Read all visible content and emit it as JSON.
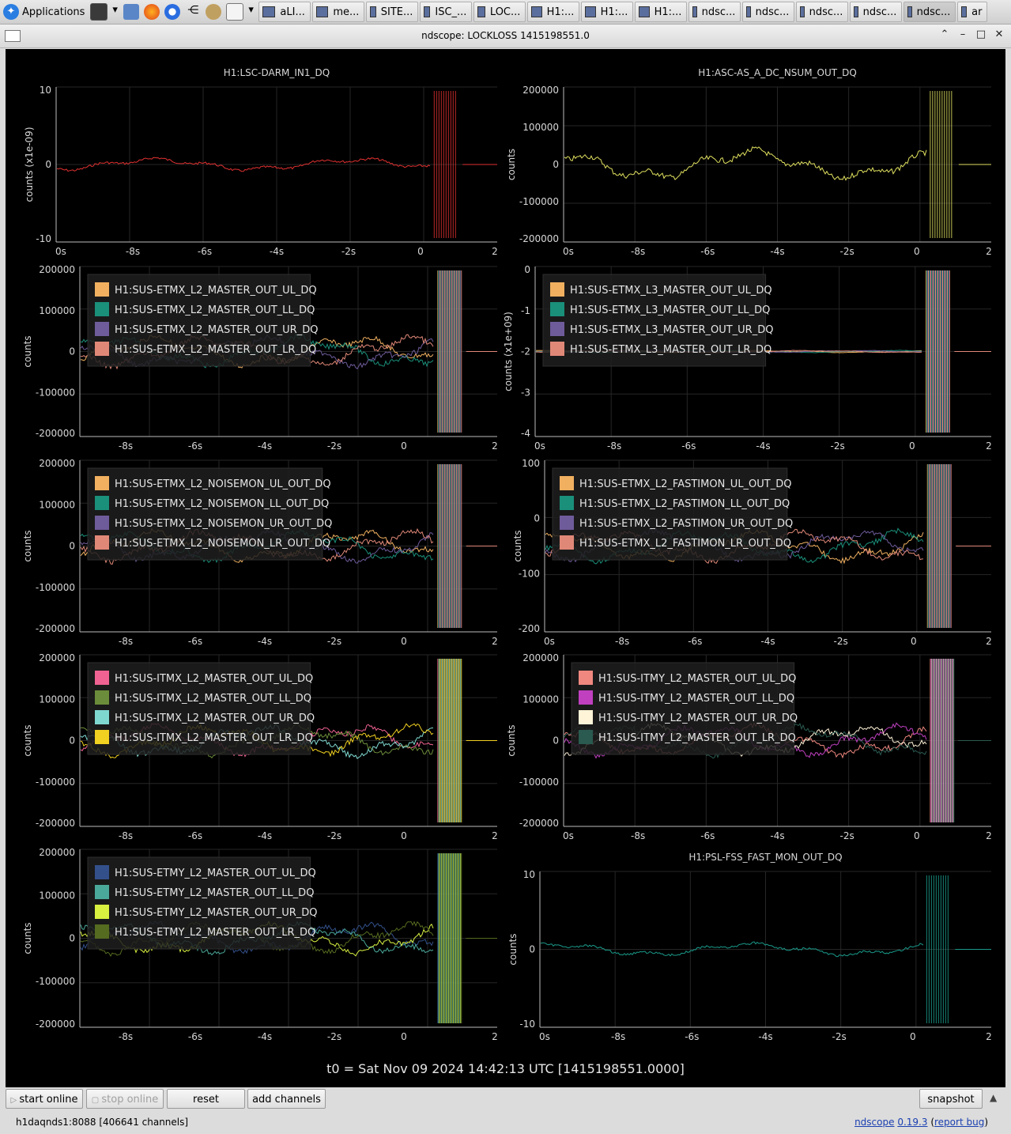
{
  "taskbar": {
    "apps_label": "Applications",
    "tasks": [
      {
        "label": "aLI...",
        "active": false
      },
      {
        "label": "me...",
        "active": false
      },
      {
        "label": "SITE...",
        "active": false
      },
      {
        "label": "ISC_...",
        "active": false
      },
      {
        "label": "LOC...",
        "active": false
      },
      {
        "label": "H1:...",
        "active": false
      },
      {
        "label": "H1:...",
        "active": false
      },
      {
        "label": "H1:...",
        "active": false
      },
      {
        "label": "ndsc...",
        "active": false
      },
      {
        "label": "ndsc...",
        "active": false
      },
      {
        "label": "ndsc...",
        "active": false
      },
      {
        "label": "ndsc...",
        "active": false
      },
      {
        "label": "ndsc...",
        "active": true
      },
      {
        "label": "ar",
        "active": false
      }
    ]
  },
  "window": {
    "title": "ndscope: LOCKLOSS 1415198551.0"
  },
  "colors": {
    "background": "#000000",
    "grid": "#262626",
    "axis": "#bdbdbd"
  },
  "plots": [
    {
      "title": "H1:LSC-DARM_IN1_DQ",
      "ylabel": "counts (x1e-09)",
      "yticks": [
        "10",
        "0",
        "-10"
      ],
      "xticks": [
        "0s",
        "-8s",
        "-6s",
        "-4s",
        "-2s",
        "0",
        "2"
      ],
      "legend": []
    },
    {
      "title": "H1:ASC-AS_A_DC_NSUM_OUT_DQ",
      "ylabel": "counts",
      "yticks": [
        "200000",
        "100000",
        "0",
        "-100000",
        "-200000"
      ],
      "xticks": [
        "0s",
        "-8s",
        "-6s",
        "-4s",
        "-2s",
        "0",
        "2"
      ],
      "legend": []
    },
    {
      "title": "",
      "ylabel": "counts",
      "yticks": [
        "200000",
        "100000",
        "0",
        "-100000",
        "-200000"
      ],
      "xticks": [
        "-8s",
        "-6s",
        "-4s",
        "-2s",
        "0",
        "2"
      ],
      "legend": [
        {
          "label": "H1:SUS-ETMX_L2_MASTER_OUT_UL_DQ",
          "color": "#f0b060"
        },
        {
          "label": "H1:SUS-ETMX_L2_MASTER_OUT_LL_DQ",
          "color": "#1a8f7a"
        },
        {
          "label": "H1:SUS-ETMX_L2_MASTER_OUT_UR_DQ",
          "color": "#6e5b9a"
        },
        {
          "label": "H1:SUS-ETMX_L2_MASTER_OUT_LR_DQ",
          "color": "#e08878"
        }
      ]
    },
    {
      "title": "",
      "ylabel": "counts (x1e+09)",
      "yticks": [
        "0",
        "-1",
        "-2",
        "-3",
        "-4"
      ],
      "xticks": [
        "0s",
        "-8s",
        "-6s",
        "-4s",
        "-2s",
        "0",
        "2"
      ],
      "legend": [
        {
          "label": "H1:SUS-ETMX_L3_MASTER_OUT_UL_DQ",
          "color": "#f0b060"
        },
        {
          "label": "H1:SUS-ETMX_L3_MASTER_OUT_LL_DQ",
          "color": "#1a8f7a"
        },
        {
          "label": "H1:SUS-ETMX_L3_MASTER_OUT_UR_DQ",
          "color": "#6e5b9a"
        },
        {
          "label": "H1:SUS-ETMX_L3_MASTER_OUT_LR_DQ",
          "color": "#e08878"
        }
      ]
    },
    {
      "title": "",
      "ylabel": "counts",
      "yticks": [
        "200000",
        "100000",
        "0",
        "-100000",
        "-200000"
      ],
      "xticks": [
        "-8s",
        "-6s",
        "-4s",
        "-2s",
        "0",
        "2"
      ],
      "legend": [
        {
          "label": "H1:SUS-ETMX_L2_NOISEMON_UL_OUT_DQ",
          "color": "#f0b060"
        },
        {
          "label": "H1:SUS-ETMX_L2_NOISEMON_LL_OUT_DQ",
          "color": "#1a8f7a"
        },
        {
          "label": "H1:SUS-ETMX_L2_NOISEMON_UR_OUT_DQ",
          "color": "#6e5b9a"
        },
        {
          "label": "H1:SUS-ETMX_L2_NOISEMON_LR_OUT_DQ",
          "color": "#e08878"
        }
      ]
    },
    {
      "title": "",
      "ylabel": "counts",
      "yticks": [
        "100",
        "0",
        "-100",
        "-200"
      ],
      "xticks": [
        "0s",
        "-8s",
        "-6s",
        "-4s",
        "-2s",
        "0",
        "2"
      ],
      "legend": [
        {
          "label": "H1:SUS-ETMX_L2_FASTIMON_UL_OUT_DQ",
          "color": "#f0b060"
        },
        {
          "label": "H1:SUS-ETMX_L2_FASTIMON_LL_OUT_DQ",
          "color": "#1a8f7a"
        },
        {
          "label": "H1:SUS-ETMX_L2_FASTIMON_UR_OUT_DQ",
          "color": "#6e5b9a"
        },
        {
          "label": "H1:SUS-ETMX_L2_FASTIMON_LR_OUT_DQ",
          "color": "#e08878"
        }
      ]
    },
    {
      "title": "",
      "ylabel": "counts",
      "yticks": [
        "200000",
        "100000",
        "0",
        "-100000",
        "-200000"
      ],
      "xticks": [
        "-8s",
        "-6s",
        "-4s",
        "-2s",
        "0",
        "2"
      ],
      "legend": [
        {
          "label": "H1:SUS-ITMX_L2_MASTER_OUT_UL_DQ",
          "color": "#f06292"
        },
        {
          "label": "H1:SUS-ITMX_L2_MASTER_OUT_LL_DQ",
          "color": "#6b8c3a"
        },
        {
          "label": "H1:SUS-ITMX_L2_MASTER_OUT_UR_DQ",
          "color": "#7fd8d0"
        },
        {
          "label": "H1:SUS-ITMX_L2_MASTER_OUT_LR_DQ",
          "color": "#f0d020"
        }
      ]
    },
    {
      "title": "",
      "ylabel": "counts",
      "yticks": [
        "200000",
        "100000",
        "0",
        "-100000",
        "-200000"
      ],
      "xticks": [
        "0s",
        "-8s",
        "-6s",
        "-4s",
        "-2s",
        "0",
        "2"
      ],
      "legend": [
        {
          "label": "H1:SUS-ITMY_L2_MASTER_OUT_UL_DQ",
          "color": "#f08880"
        },
        {
          "label": "H1:SUS-ITMY_L2_MASTER_OUT_LL_DQ",
          "color": "#c040c0"
        },
        {
          "label": "H1:SUS-ITMY_L2_MASTER_OUT_UR_DQ",
          "color": "#fff3d8"
        },
        {
          "label": "H1:SUS-ITMY_L2_MASTER_OUT_LR_DQ",
          "color": "#2a5a50"
        }
      ]
    },
    {
      "title": "",
      "ylabel": "counts",
      "yticks": [
        "200000",
        "100000",
        "0",
        "-100000",
        "-200000"
      ],
      "xticks": [
        "-8s",
        "-6s",
        "-4s",
        "-2s",
        "0",
        "2"
      ],
      "legend": [
        {
          "label": "H1:SUS-ETMY_L2_MASTER_OUT_UL_DQ",
          "color": "#33508a"
        },
        {
          "label": "H1:SUS-ETMY_L2_MASTER_OUT_LL_DQ",
          "color": "#4aa89a"
        },
        {
          "label": "H1:SUS-ETMY_L2_MASTER_OUT_UR_DQ",
          "color": "#d8f040"
        },
        {
          "label": "H1:SUS-ETMY_L2_MASTER_OUT_LR_DQ",
          "color": "#556b20"
        }
      ]
    },
    {
      "title": "H1:PSL-FSS_FAST_MON_OUT_DQ",
      "ylabel": "counts",
      "yticks": [
        "10",
        "0",
        "-10"
      ],
      "xticks": [
        "0s",
        "-8s",
        "-6s",
        "-4s",
        "-2s",
        "0",
        "2"
      ],
      "legend": []
    }
  ],
  "t0_label": "t0 = Sat Nov 09 2024 14:42:13 UTC [1415198551.0000]",
  "buttons": {
    "start_online": "start online",
    "stop_online": "stop online",
    "reset": "reset",
    "add_channels": "add channels",
    "snapshot": "snapshot"
  },
  "status": {
    "server": "h1daqnds1:8088  [406641 channels]",
    "app_name": "ndscope",
    "version": "0.19.3",
    "report_bug": "report bug"
  }
}
